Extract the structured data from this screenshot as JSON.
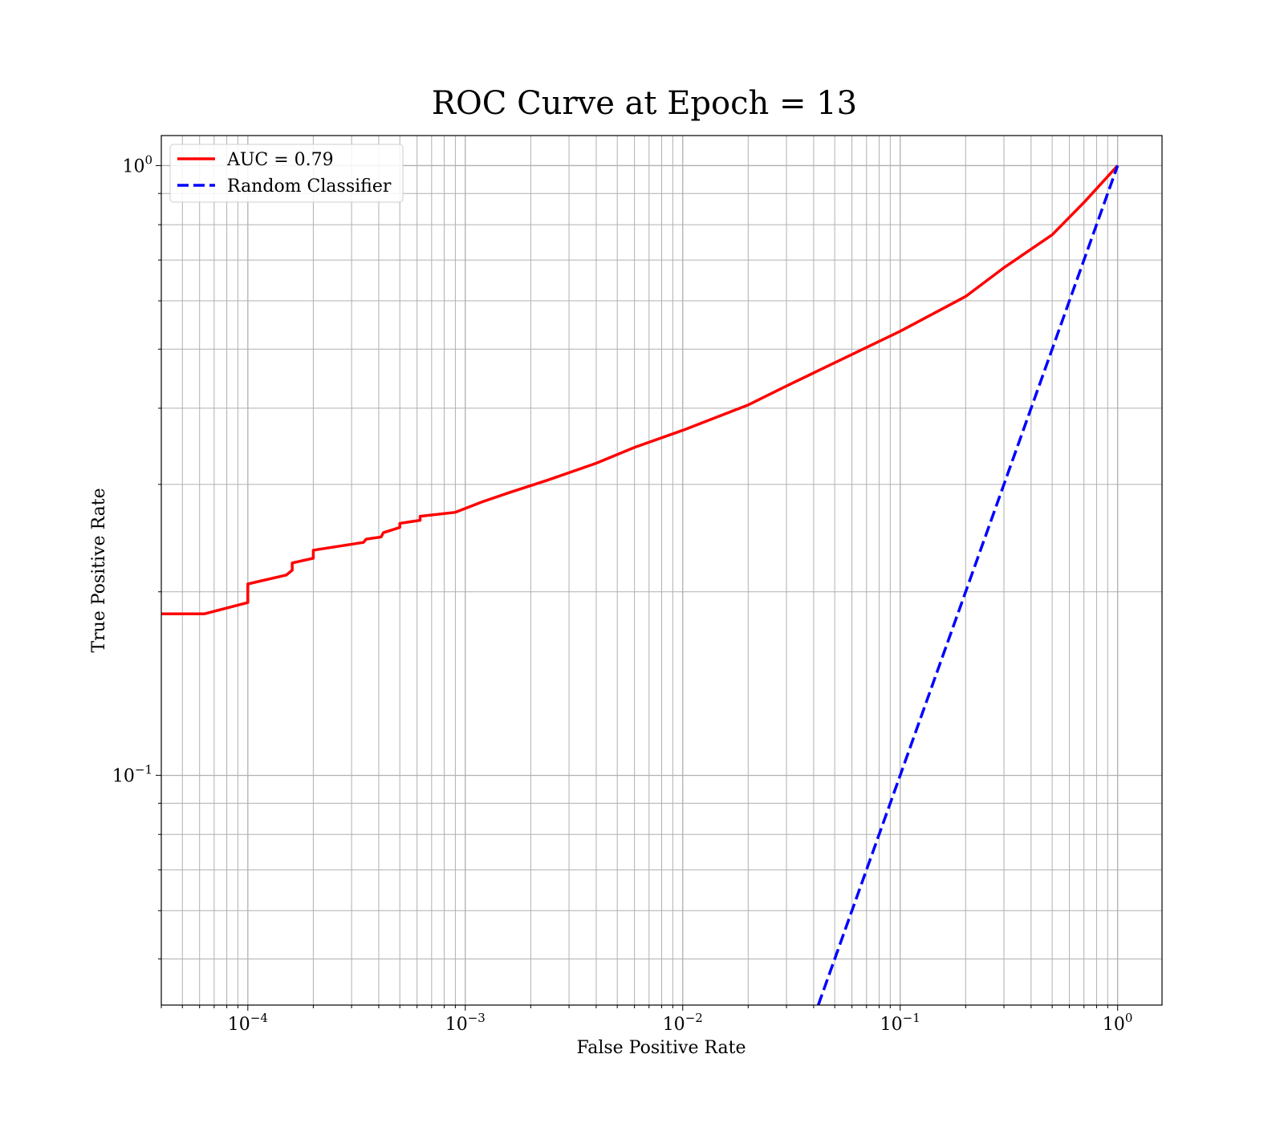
{
  "chart_data": {
    "type": "line",
    "title": "ROC Curve at Epoch = 13",
    "xlabel": "False Positive Rate",
    "ylabel": "True Positive Rate",
    "xscale": "log",
    "yscale": "log",
    "xlim": [
      4e-05,
      1.6
    ],
    "ylim": [
      0.042,
      1.12
    ],
    "grid": "on (major and minor)",
    "legend": "top-left",
    "x_ticks": [
      {
        "value": 0.0001,
        "base": "10",
        "exp": "−4"
      },
      {
        "value": 0.001,
        "base": "10",
        "exp": "−3"
      },
      {
        "value": 0.01,
        "base": "10",
        "exp": "−2"
      },
      {
        "value": 0.1,
        "base": "10",
        "exp": "−1"
      },
      {
        "value": 1,
        "base": "10",
        "exp": "0"
      }
    ],
    "y_ticks": [
      {
        "value": 0.1,
        "base": "10",
        "exp": "−1"
      },
      {
        "value": 1,
        "base": "10",
        "exp": "0"
      }
    ],
    "series": [
      {
        "name": "AUC = 0.79",
        "color": "#ff0000",
        "style": "solid",
        "x": [
          4e-05,
          6.3e-05,
          0.0001,
          0.0001,
          0.00015,
          0.00016,
          0.00016,
          0.0002,
          0.0002,
          0.00034,
          0.00035,
          0.00041,
          0.00042,
          0.0005,
          0.0005,
          0.00062,
          0.00062,
          0.0009,
          0.0012,
          0.0016,
          0.0024,
          0.004,
          0.006,
          0.01,
          0.02,
          0.03,
          0.05,
          0.1,
          0.2,
          0.3,
          0.5,
          0.7,
          1.0
        ],
        "y": [
          0.184,
          0.184,
          0.192,
          0.206,
          0.213,
          0.217,
          0.223,
          0.227,
          0.234,
          0.241,
          0.244,
          0.246,
          0.25,
          0.255,
          0.259,
          0.262,
          0.266,
          0.27,
          0.281,
          0.291,
          0.305,
          0.325,
          0.345,
          0.368,
          0.405,
          0.435,
          0.475,
          0.535,
          0.61,
          0.68,
          0.77,
          0.87,
          1.0
        ]
      },
      {
        "name": "Random Classifier",
        "color": "#0000ff",
        "style": "dashed",
        "x": [
          0.042,
          1.0
        ],
        "y": [
          0.042,
          1.0
        ]
      }
    ]
  }
}
